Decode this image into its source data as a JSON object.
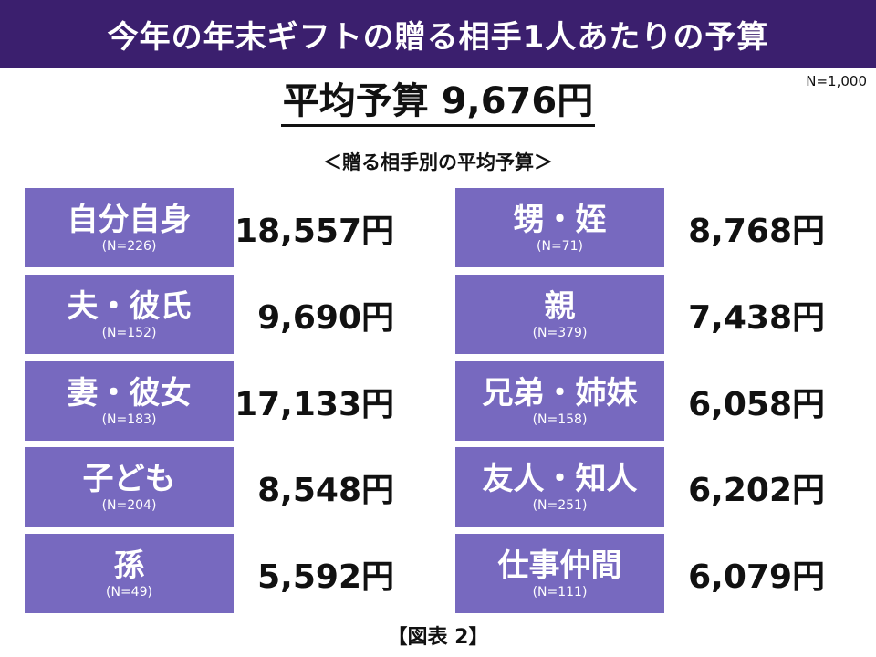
{
  "header": {
    "title": "今年の年末ギフトの贈る相手1人あたりの予算"
  },
  "sample_note": "N=1,000",
  "average": {
    "text": "平均予算 9,676円"
  },
  "subtitle": "＜贈る相手別の平均予算＞",
  "figure_caption": "【図表 2】",
  "colors": {
    "header_bg": "#3b1f6e",
    "box_bg": "#7769bf"
  },
  "chart_data": {
    "type": "table",
    "average_value": 9676,
    "unit": "円",
    "rows": [
      {
        "label": "自分自身",
        "n": "(N=226)",
        "value": 18557,
        "value_text": "18,557円"
      },
      {
        "label": "夫・彼氏",
        "n": "(N=152)",
        "value": 9690,
        "value_text": "9,690円"
      },
      {
        "label": "妻・彼女",
        "n": "(N=183)",
        "value": 17133,
        "value_text": "17,133円"
      },
      {
        "label": "子ども",
        "n": "(N=204)",
        "value": 8548,
        "value_text": "8,548円"
      },
      {
        "label": "孫",
        "n": "(N=49)",
        "value": 5592,
        "value_text": "5,592円"
      },
      {
        "label": "甥・姪",
        "n": "(N=71)",
        "value": 8768,
        "value_text": "8,768円"
      },
      {
        "label": "親",
        "n": "(N=379)",
        "value": 7438,
        "value_text": "7,438円"
      },
      {
        "label": "兄弟・姉妹",
        "n": "(N=158)",
        "value": 6058,
        "value_text": "6,058円"
      },
      {
        "label": "友人・知人",
        "n": "(N=251)",
        "value": 6202,
        "value_text": "6,202円"
      },
      {
        "label": "仕事仲間",
        "n": "(N=111)",
        "value": 6079,
        "value_text": "6,079円"
      }
    ]
  }
}
